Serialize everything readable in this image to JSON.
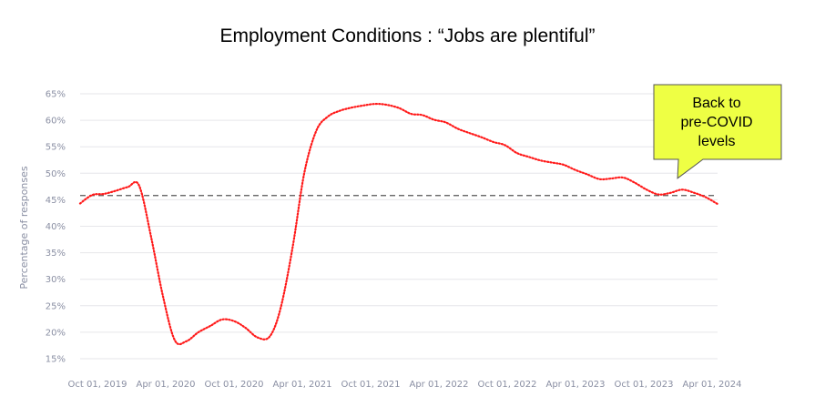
{
  "chart_data": {
    "type": "line",
    "title": "Employment Conditions : “Jobs are plentiful”",
    "ylabel": "Percentage of responses",
    "xlabel": "",
    "x_ticks": [
      "Oct 01, 2019",
      "Apr 01, 2020",
      "Oct 01, 2020",
      "Apr 01, 2021",
      "Oct 01, 2021",
      "Apr 01, 2022",
      "Oct 01, 2022",
      "Apr 01, 2023",
      "Oct 01, 2023",
      "Apr 01, 2024"
    ],
    "y_ticks": [
      "15%",
      "20%",
      "25%",
      "30%",
      "35%",
      "40%",
      "45%",
      "50%",
      "55%",
      "60%",
      "65%"
    ],
    "ylim": [
      15,
      65
    ],
    "grid": "horizontal",
    "line_color": "#ff1a1a",
    "reference_color": "#555555",
    "series": [
      {
        "style": "dotted",
        "points": [
          [
            "2019-10-01",
            44.3
          ],
          [
            "2019-11-01",
            45.9
          ],
          [
            "2019-12-01",
            46.1
          ],
          [
            "2020-01-01",
            46.7
          ],
          [
            "2020-02-01",
            47.4
          ],
          [
            "2020-03-01",
            47.7
          ],
          [
            "2020-04-01",
            38.0
          ],
          [
            "2020-05-01",
            27.0
          ],
          [
            "2020-06-01",
            18.5
          ],
          [
            "2020-07-01",
            18.3
          ],
          [
            "2020-08-01",
            20.0
          ],
          [
            "2020-09-01",
            21.2
          ],
          [
            "2020-10-01",
            22.4
          ],
          [
            "2020-11-01",
            22.1
          ],
          [
            "2020-12-01",
            20.8
          ],
          [
            "2021-01-01",
            19.0
          ],
          [
            "2021-02-01",
            19.2
          ],
          [
            "2021-03-01",
            24.5
          ],
          [
            "2021-04-01",
            36.0
          ],
          [
            "2021-05-01",
            50.0
          ],
          [
            "2021-06-01",
            58.0
          ],
          [
            "2021-07-01",
            60.7
          ],
          [
            "2021-08-01",
            61.8
          ],
          [
            "2021-09-01",
            62.4
          ],
          [
            "2021-10-01",
            62.8
          ],
          [
            "2021-11-01",
            63.1
          ],
          [
            "2021-12-01",
            62.9
          ],
          [
            "2022-01-01",
            62.3
          ],
          [
            "2022-02-01",
            61.2
          ],
          [
            "2022-03-01",
            61.0
          ],
          [
            "2022-04-01",
            60.1
          ],
          [
            "2022-05-01",
            59.6
          ],
          [
            "2022-06-01",
            58.4
          ],
          [
            "2022-07-01",
            57.6
          ],
          [
            "2022-08-01",
            56.8
          ],
          [
            "2022-09-01",
            55.9
          ],
          [
            "2022-10-01",
            55.3
          ],
          [
            "2022-11-01",
            53.8
          ],
          [
            "2022-12-01",
            53.1
          ],
          [
            "2023-01-01",
            52.4
          ],
          [
            "2023-02-01",
            52.0
          ],
          [
            "2023-03-01",
            51.6
          ],
          [
            "2023-04-01",
            50.6
          ],
          [
            "2023-05-01",
            49.8
          ],
          [
            "2023-06-01",
            48.9
          ],
          [
            "2023-07-01",
            49.0
          ],
          [
            "2023-08-01",
            49.2
          ],
          [
            "2023-09-01",
            48.2
          ],
          [
            "2023-10-01",
            46.9
          ],
          [
            "2023-11-01",
            46.0
          ],
          [
            "2023-12-01",
            46.3
          ],
          [
            "2024-01-01",
            46.9
          ],
          [
            "2024-02-01",
            46.3
          ],
          [
            "2024-03-01",
            45.5
          ],
          [
            "2024-04-01",
            44.2
          ]
        ]
      }
    ],
    "reference_line": {
      "y": 45.8,
      "style": "dashed"
    },
    "annotation": {
      "text": "Back to\npre-COVID\nlevels",
      "box_color": "#eeff44",
      "points_to": [
        "2023-12-01",
        46.3
      ]
    }
  }
}
